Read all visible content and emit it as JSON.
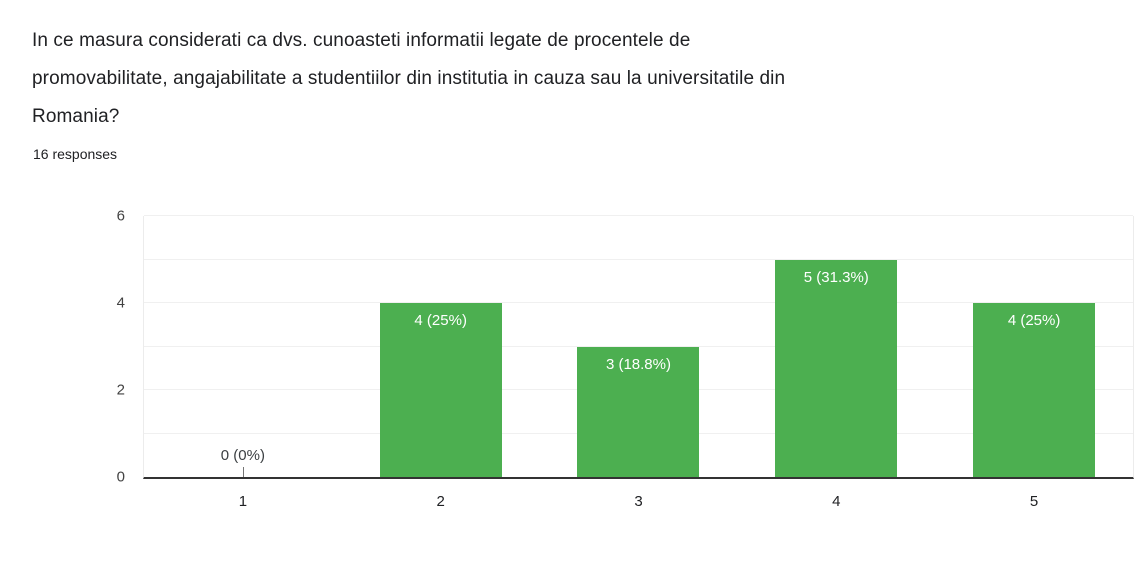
{
  "header": {
    "title_lines": [
      "In ce masura considerati ca dvs. cunoasteti informatii legate de procentele de",
      "promovabilitate, angajabilitate a studentiilor din institutia in cauza sau la universitatile din",
      "Romania?"
    ],
    "responses_label": "16 responses"
  },
  "chart_data": {
    "type": "bar",
    "title": "",
    "xlabel": "",
    "ylabel": "",
    "categories": [
      "1",
      "2",
      "3",
      "4",
      "5"
    ],
    "values": [
      0,
      4,
      3,
      5,
      4
    ],
    "bar_labels": [
      "0 (0%)",
      "4 (25%)",
      "3 (18.8%)",
      "5 (31.3%)",
      "4 (25%)"
    ],
    "ylim": [
      0,
      6
    ],
    "yticks": [
      0,
      2,
      4,
      6
    ],
    "gridlines": [
      1,
      2,
      3,
      4,
      5,
      6
    ],
    "grid_on": true,
    "legend": "none",
    "bar_color": "#4caf50",
    "bar_label_color": "#ffffff",
    "zero_label_color": "#3c4043",
    "axis_color": "#333333",
    "grid_color": "#f0f0f0",
    "grid_edge_color": "#ececec",
    "ytick_color": "#424242",
    "xtick_color": "#202124"
  }
}
